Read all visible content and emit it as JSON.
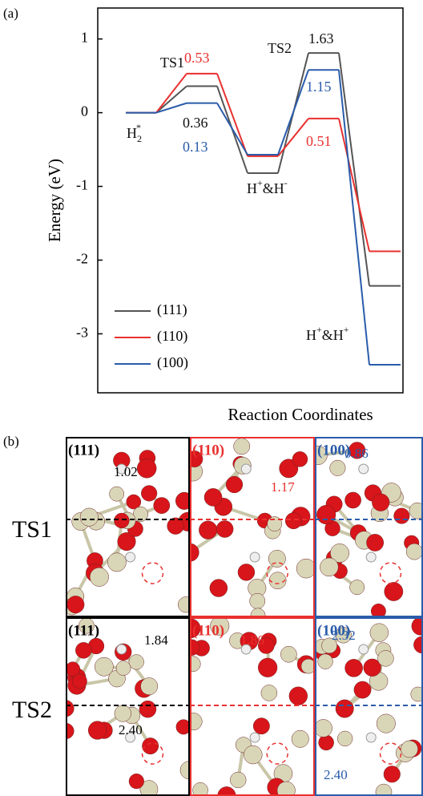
{
  "chart_data": {
    "type": "line",
    "panel_label": "(a)",
    "y_label": "Energy (eV)",
    "x_label": "Reaction Coordinates",
    "ylim": [
      -3.8,
      1.42
    ],
    "yticks": [
      1,
      0,
      -1,
      -2,
      -3
    ],
    "series": [
      {
        "name": "(111)",
        "color": "#555555",
        "values": [
          0,
          0.36,
          -0.82,
          0.81,
          -2.35
        ]
      },
      {
        "name": "(110)",
        "color": "#e8312f",
        "values": [
          0,
          0.53,
          -0.59,
          -0.08,
          -1.88
        ]
      },
      {
        "name": "(100)",
        "color": "#2a5caa",
        "values": [
          0,
          0.13,
          -0.57,
          0.58,
          -3.42
        ]
      }
    ],
    "legend": "lower left",
    "annotations": [
      {
        "color": "#111111",
        "parts": [
          {
            "text": "H"
          },
          {
            "text": "2",
            "sub": true
          },
          {
            "text": "*",
            "sup": true
          }
        ]
      },
      {
        "color": "#111111",
        "parts": [
          {
            "text": "TS1"
          }
        ]
      },
      {
        "color": "#e8312f",
        "parts": [
          {
            "text": "0.53"
          }
        ]
      },
      {
        "color": "#111111",
        "parts": [
          {
            "text": "0.36"
          }
        ]
      },
      {
        "color": "#2a5caa",
        "parts": [
          {
            "text": "0.13"
          }
        ]
      },
      {
        "color": "#111111",
        "parts": [
          {
            "text": "H"
          },
          {
            "text": "+",
            "sup": true
          },
          {
            "text": "&H"
          },
          {
            "text": "-",
            "sup": true
          }
        ]
      },
      {
        "color": "#111111",
        "parts": [
          {
            "text": "TS2"
          }
        ]
      },
      {
        "color": "#111111",
        "parts": [
          {
            "text": "1.63"
          }
        ]
      },
      {
        "color": "#2a5caa",
        "parts": [
          {
            "text": "1.15"
          }
        ]
      },
      {
        "color": "#e8312f",
        "parts": [
          {
            "text": "0.51"
          }
        ]
      },
      {
        "color": "#111111",
        "parts": [
          {
            "text": "H"
          },
          {
            "text": "+",
            "sup": true
          },
          {
            "text": "&H"
          },
          {
            "text": "+",
            "sup": true
          }
        ]
      }
    ]
  },
  "panel_b": {
    "label": "(b)",
    "rows": [
      {
        "name": "TS1",
        "cells": [
          {
            "facet": "(111)",
            "color": "#000000",
            "distances": [
              "1.02"
            ]
          },
          {
            "facet": "(110)",
            "color": "#e8312f",
            "distances": [
              "1.17"
            ]
          },
          {
            "facet": "(100)",
            "color": "#2a5caa",
            "distances": [
              "0.86"
            ]
          }
        ]
      },
      {
        "name": "TS2",
        "cells": [
          {
            "facet": "(111)",
            "color": "#000000",
            "distances": [
              "1.84",
              "2.40"
            ]
          },
          {
            "facet": "(110)",
            "color": "#e8312f",
            "distances": [
              "1.86"
            ]
          },
          {
            "facet": "(100)",
            "color": "#2a5caa",
            "distances": [
              "2.32",
              "2.40"
            ]
          }
        ]
      }
    ]
  }
}
